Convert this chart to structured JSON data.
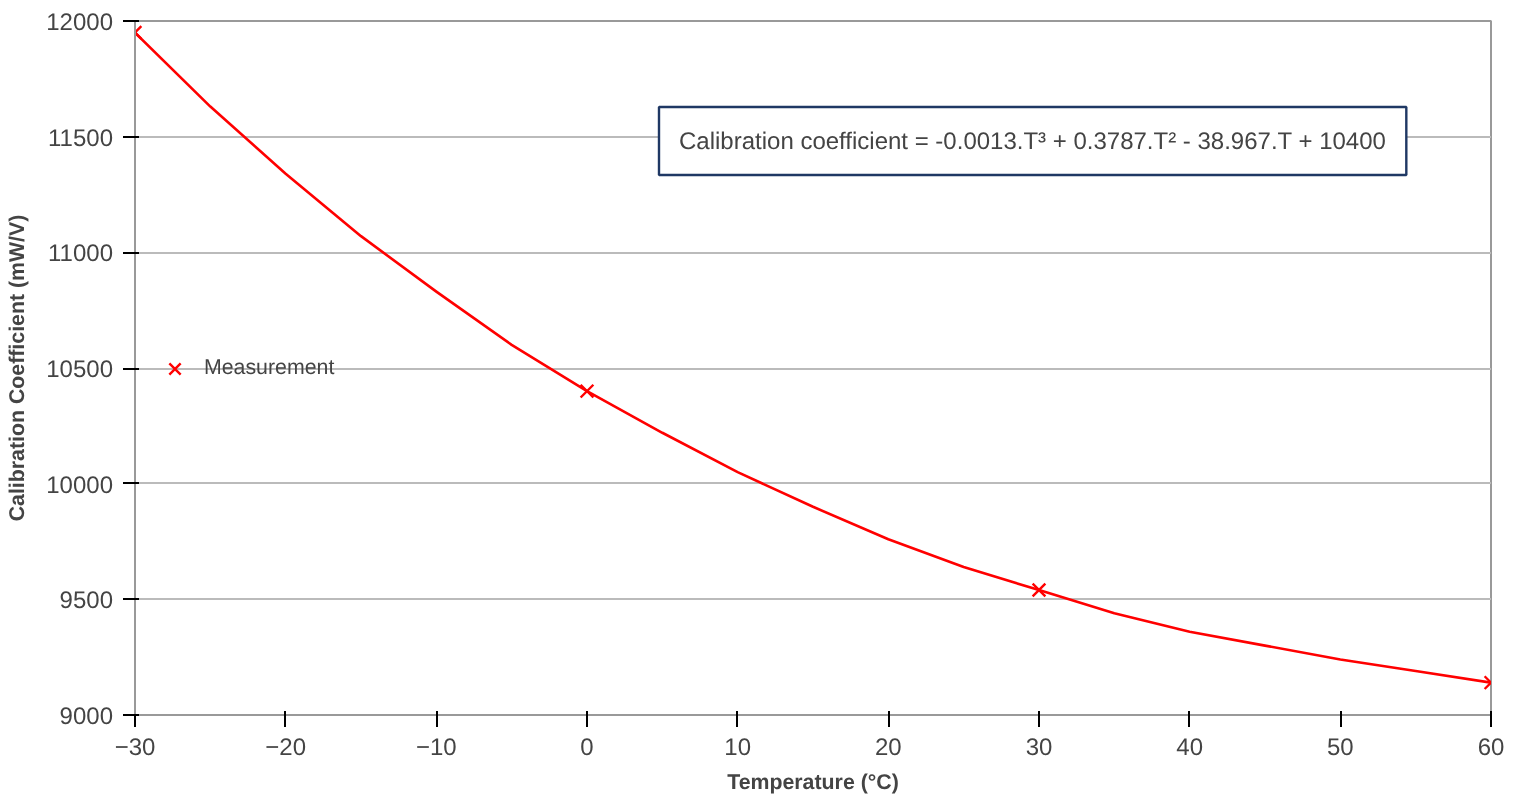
{
  "chart_data": {
    "type": "scatter",
    "xlabel": "Temperature (°C)",
    "ylabel": "Calibration Coefficient (mW/V)",
    "xlim": [
      -30,
      60
    ],
    "xticks": [
      -30,
      -20,
      -10,
      0,
      10,
      20,
      30,
      40,
      50,
      60
    ],
    "ylim": [
      9000,
      12000
    ],
    "yticks": [
      9000,
      9500,
      10000,
      10500,
      11000,
      11500,
      12000
    ],
    "grid": "y",
    "legend": "left",
    "annotations": [
      "Calibration coefficient = -0.0013.T³ + 0.3787.T² - 38.967.T + 10400"
    ],
    "series": [
      {
        "name": "Measurement",
        "marker": "cross",
        "color": "#ff0000",
        "x": [
          -30,
          0,
          30,
          60
        ],
        "values": [
          11950,
          10400,
          9540,
          9140
        ]
      },
      {
        "type": "line",
        "marker": "none",
        "color": "#ff0000",
        "x": [
          -30,
          -25,
          -20,
          -15,
          -10,
          -5,
          0,
          5,
          10,
          15,
          20,
          25,
          30,
          35,
          40,
          45,
          50,
          55,
          60
        ],
        "values": [
          11950,
          11630,
          11340,
          11070,
          10830,
          10600,
          10400,
          10220,
          10050,
          9900,
          9760,
          9640,
          9540,
          9440,
          9360,
          9300,
          9240,
          9190,
          9140
        ]
      }
    ]
  }
}
